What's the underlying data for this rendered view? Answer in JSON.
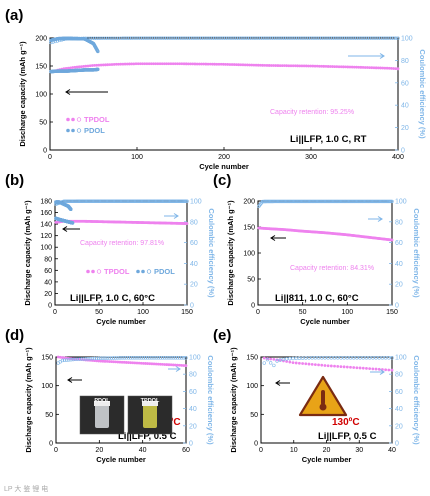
{
  "colors": {
    "capacity": "#ee82ee",
    "efficiency": "#7fb6e8",
    "note": "#ee82ee",
    "temperature": "#d00000",
    "warning": "#e8a317"
  },
  "watermark": "LP 大 鉴 锂 电",
  "chart_data": [
    {
      "panel": "(a)",
      "type": "scatter",
      "xlabel": "Cycle number",
      "ylabel": "Discharge capacity (mAh g⁻¹)",
      "y2label": "Coulombic efficiency (%)",
      "xlim": [
        0,
        400
      ],
      "ylim": [
        0,
        200
      ],
      "y2lim": [
        0,
        100
      ],
      "xticks": [
        "0",
        "100",
        "200",
        "300",
        "400"
      ],
      "yticks": [
        "0",
        "50",
        "100",
        "150",
        "200"
      ],
      "y2ticks": [
        "0",
        "20",
        "40",
        "60",
        "80",
        "100"
      ],
      "note": "Capacity retention: 95.25%",
      "condition": "Li||LFP, 1.0 C, RT",
      "legend": [
        "TPDOL",
        "PDOL"
      ],
      "series": [
        {
          "name": "TPDOL",
          "axis": "capacity",
          "x": [
            1,
            15,
            30,
            50,
            75,
            100,
            150,
            200,
            250,
            300,
            350,
            390,
            400
          ],
          "y": [
            140,
            145,
            148,
            151,
            153,
            154,
            154,
            153,
            151,
            150,
            148,
            146,
            145
          ]
        },
        {
          "name": "TPDOL",
          "axis": "efficiency",
          "x": [
            1,
            20,
            50,
            100,
            150,
            200,
            250,
            300,
            350,
            400
          ],
          "y": [
            96,
            99.6,
            99.7,
            99.8,
            99.8,
            99.8,
            99.8,
            99.8,
            99.8,
            99.8
          ]
        },
        {
          "name": "PDOL",
          "axis": "capacity",
          "x": [
            1,
            10,
            20,
            30,
            40,
            50,
            55
          ],
          "y": [
            140,
            141,
            141,
            142,
            143,
            143,
            144
          ]
        },
        {
          "name": "PDOL",
          "axis": "efficiency",
          "x": [
            1,
            10,
            20,
            30,
            40,
            50,
            55
          ],
          "y": [
            98,
            99.5,
            99.6,
            99.5,
            99.2,
            95,
            88
          ]
        }
      ]
    },
    {
      "panel": "(b)",
      "type": "scatter",
      "xlabel": "Cycle number",
      "ylabel": "Discharge capacity (mAh g⁻¹)",
      "y2label": "Coulombic efficiency (%)",
      "xlim": [
        0,
        150
      ],
      "ylim": [
        0,
        180
      ],
      "y2lim": [
        0,
        100
      ],
      "xticks": [
        "0",
        "50",
        "100",
        "150"
      ],
      "yticks": [
        "0",
        "20",
        "40",
        "60",
        "80",
        "100",
        "120",
        "140",
        "160",
        "180"
      ],
      "y2ticks": [
        "0",
        "20",
        "40",
        "60",
        "80",
        "100"
      ],
      "note": "Capacity retention: 97.81%",
      "condition": "Li||LFP, 1.0 C, 60°C",
      "legend": [
        "TPDOL",
        "PDOL"
      ],
      "series": [
        {
          "name": "TPDOL",
          "axis": "capacity",
          "x": [
            1,
            10,
            30,
            60,
            90,
            120,
            150
          ],
          "y": [
            143,
            145,
            145,
            144,
            143,
            142,
            141
          ]
        },
        {
          "name": "TPDOL",
          "axis": "efficiency",
          "x": [
            1,
            10,
            40,
            80,
            120,
            150
          ],
          "y": [
            97,
            99.7,
            99.8,
            99.8,
            99.8,
            99.8
          ]
        },
        {
          "name": "PDOL",
          "axis": "capacity",
          "x": [
            1,
            5,
            10,
            15,
            20
          ],
          "y": [
            150,
            148,
            146,
            144,
            142
          ]
        },
        {
          "name": "PDOL",
          "axis": "efficiency",
          "x": [
            1,
            5,
            10,
            15,
            18
          ],
          "y": [
            99,
            99,
            97,
            95,
            92
          ]
        }
      ]
    },
    {
      "panel": "(c)",
      "type": "scatter",
      "xlabel": "Cycle number",
      "ylabel": "Discharge capacity (mAh g⁻¹)",
      "y2label": "Coulombic efficiency (%)",
      "xlim": [
        0,
        150
      ],
      "ylim": [
        0,
        200
      ],
      "y2lim": [
        0,
        100
      ],
      "xticks": [
        "0",
        "50",
        "100",
        "150"
      ],
      "yticks": [
        "0",
        "50",
        "100",
        "150",
        "200"
      ],
      "y2ticks": [
        "0",
        "20",
        "40",
        "60",
        "80",
        "100"
      ],
      "note": "Capacity retention: 84.31%",
      "condition": "Li||811, 1.0 C, 60°C",
      "series": [
        {
          "name": "",
          "axis": "capacity",
          "x": [
            1,
            10,
            30,
            50,
            75,
            100,
            125,
            150
          ],
          "y": [
            148,
            147,
            145,
            142,
            139,
            135,
            130,
            125
          ]
        },
        {
          "name": "",
          "axis": "efficiency",
          "x": [
            1,
            5,
            20,
            50,
            100,
            150
          ],
          "y": [
            95,
            99.5,
            99.6,
            99.6,
            99.6,
            99.6
          ]
        }
      ]
    },
    {
      "panel": "(d)",
      "type": "scatter",
      "xlabel": "Cycle number",
      "ylabel": "Discharge capacity (mAh g⁻¹)",
      "y2label": "Coulombic efficiency (%)",
      "xlim": [
        0,
        60
      ],
      "ylim": [
        0,
        150
      ],
      "y2lim": [
        0,
        100
      ],
      "xticks": [
        "0",
        "20",
        "40",
        "60"
      ],
      "yticks": [
        "0",
        "50",
        "100",
        "150"
      ],
      "y2ticks": [
        "0",
        "20",
        "40",
        "60",
        "80",
        "100"
      ],
      "condition": "Li||LFP, 0.5 C",
      "temperature": "100ºC",
      "photo_labels": [
        "PDOL",
        "TPDOL"
      ],
      "series": [
        {
          "name": "",
          "axis": "capacity",
          "x": [
            1,
            5,
            10,
            20,
            30,
            40,
            50,
            60
          ],
          "y": [
            150,
            148,
            146,
            143,
            141,
            139,
            137,
            135
          ]
        },
        {
          "name": "",
          "axis": "efficiency",
          "x": [
            1,
            3,
            10,
            20,
            30,
            40,
            50,
            60
          ],
          "y": [
            93,
            96,
            97.5,
            98.5,
            99,
            99,
            99,
            99
          ]
        }
      ]
    },
    {
      "panel": "(e)",
      "type": "scatter",
      "xlabel": "Cycle number",
      "ylabel": "Discharge capacity (mAh g⁻¹)",
      "y2label": "Coulombic efficiency (%)",
      "xlim": [
        0,
        40
      ],
      "ylim": [
        0,
        150
      ],
      "y2lim": [
        0,
        100
      ],
      "xticks": [
        "0",
        "10",
        "20",
        "30",
        "40"
      ],
      "yticks": [
        "0",
        "50",
        "100",
        "150"
      ],
      "y2ticks": [
        "0",
        "20",
        "40",
        "60",
        "80",
        "100"
      ],
      "condition": "Li||LFP, 0.5 C",
      "temperature": "130ºC",
      "series": [
        {
          "name": "",
          "axis": "capacity",
          "x": [
            1,
            5,
            10,
            20,
            30,
            40
          ],
          "y": [
            148,
            145,
            140,
            135,
            131,
            127
          ]
        },
        {
          "name": "",
          "axis": "efficiency",
          "x": [
            1,
            2,
            3,
            4,
            5,
            8,
            15,
            25,
            40
          ],
          "y": [
            93,
            97,
            93,
            90,
            96,
            98,
            99,
            99,
            99
          ]
        }
      ]
    }
  ]
}
